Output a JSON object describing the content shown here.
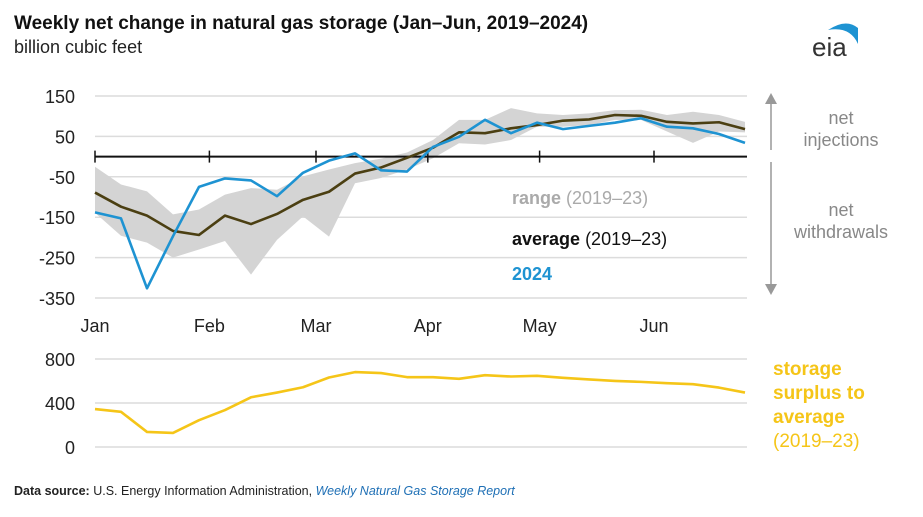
{
  "title": "Weekly net change in natural gas storage (Jan–Jun, 2019–2024)",
  "subtitle": "billion cubic feet",
  "logo_text": "eia",
  "footer": {
    "label": "Data source:",
    "source": "U.S. Energy Information Administration,",
    "report": "Weekly Natural Gas Storage Report"
  },
  "colors": {
    "range": "#d4d4d4",
    "average": "#4b3f12",
    "y2024": "#1e93d2",
    "surplus": "#f5c518",
    "grid": "#dcdcdc"
  },
  "annotations": {
    "injections": [
      "net",
      "injections"
    ],
    "withdrawals": [
      "net",
      "withdrawals"
    ],
    "surplus": [
      "storage",
      "surplus to",
      "average",
      "(2019–23)"
    ]
  },
  "chart_data": [
    {
      "type": "line",
      "title": "Weekly net change",
      "ylabel": "billion cubic feet",
      "ylim": [
        -350,
        150
      ],
      "yticks": [
        150,
        50,
        -50,
        -150,
        -250,
        -350
      ],
      "grid": true,
      "month_ticks": [
        {
          "label": "Jan",
          "week": 0
        },
        {
          "label": "Feb",
          "week": 4.4
        },
        {
          "label": "Mar",
          "week": 8.5
        },
        {
          "label": "Apr",
          "week": 12.8
        },
        {
          "label": "May",
          "week": 17.1
        },
        {
          "label": "Jun",
          "week": 21.5
        }
      ],
      "legend": [
        {
          "bold": "range",
          "rest": " (2019–23)"
        },
        {
          "bold": "average",
          "rest": " (2019–23)"
        },
        {
          "bold": "2024",
          "rest": ""
        }
      ],
      "series": [
        {
          "name": "range (2019–23) upper",
          "values": [
            -25,
            -69,
            -86,
            -143,
            -131,
            -94,
            -78,
            -82,
            -49,
            -32,
            -16,
            -5,
            10,
            41,
            91,
            91,
            120,
            107,
            103,
            107,
            115,
            116,
            103,
            111,
            103,
            86
          ]
        },
        {
          "name": "range (2019–23) lower",
          "values": [
            -139,
            -196,
            -213,
            -250,
            -230,
            -209,
            -292,
            -206,
            -148,
            -198,
            -66,
            -53,
            -32,
            -4,
            33,
            30,
            41,
            74,
            74,
            78,
            91,
            91,
            62,
            34,
            62,
            60
          ]
        },
        {
          "name": "average (2019–23)",
          "values": [
            -89,
            -124,
            -146,
            -184,
            -194,
            -146,
            -167,
            -142,
            -107,
            -87,
            -42,
            -27,
            -3,
            22,
            60,
            58,
            70,
            78,
            89,
            92,
            103,
            101,
            86,
            82,
            85,
            68
          ]
        },
        {
          "name": "2024",
          "values": [
            -138,
            -153,
            -326,
            -197,
            -75,
            -54,
            -59,
            -98,
            -40,
            -10,
            8,
            -34,
            -37,
            24,
            49,
            91,
            58,
            84,
            68,
            76,
            84,
            95,
            74,
            70,
            56,
            34
          ]
        }
      ]
    },
    {
      "type": "line",
      "title": "storage surplus to average (2019–23)",
      "ylim": [
        0,
        800
      ],
      "yticks": [
        800,
        400,
        0
      ],
      "grid": true,
      "series": [
        {
          "name": "storage surplus to average (2019–23)",
          "values": [
            345,
            320,
            137,
            128,
            244,
            336,
            452,
            495,
            543,
            632,
            681,
            672,
            635,
            635,
            620,
            653,
            641,
            647,
            629,
            614,
            601,
            592,
            580,
            571,
            540,
            495
          ]
        }
      ]
    }
  ]
}
